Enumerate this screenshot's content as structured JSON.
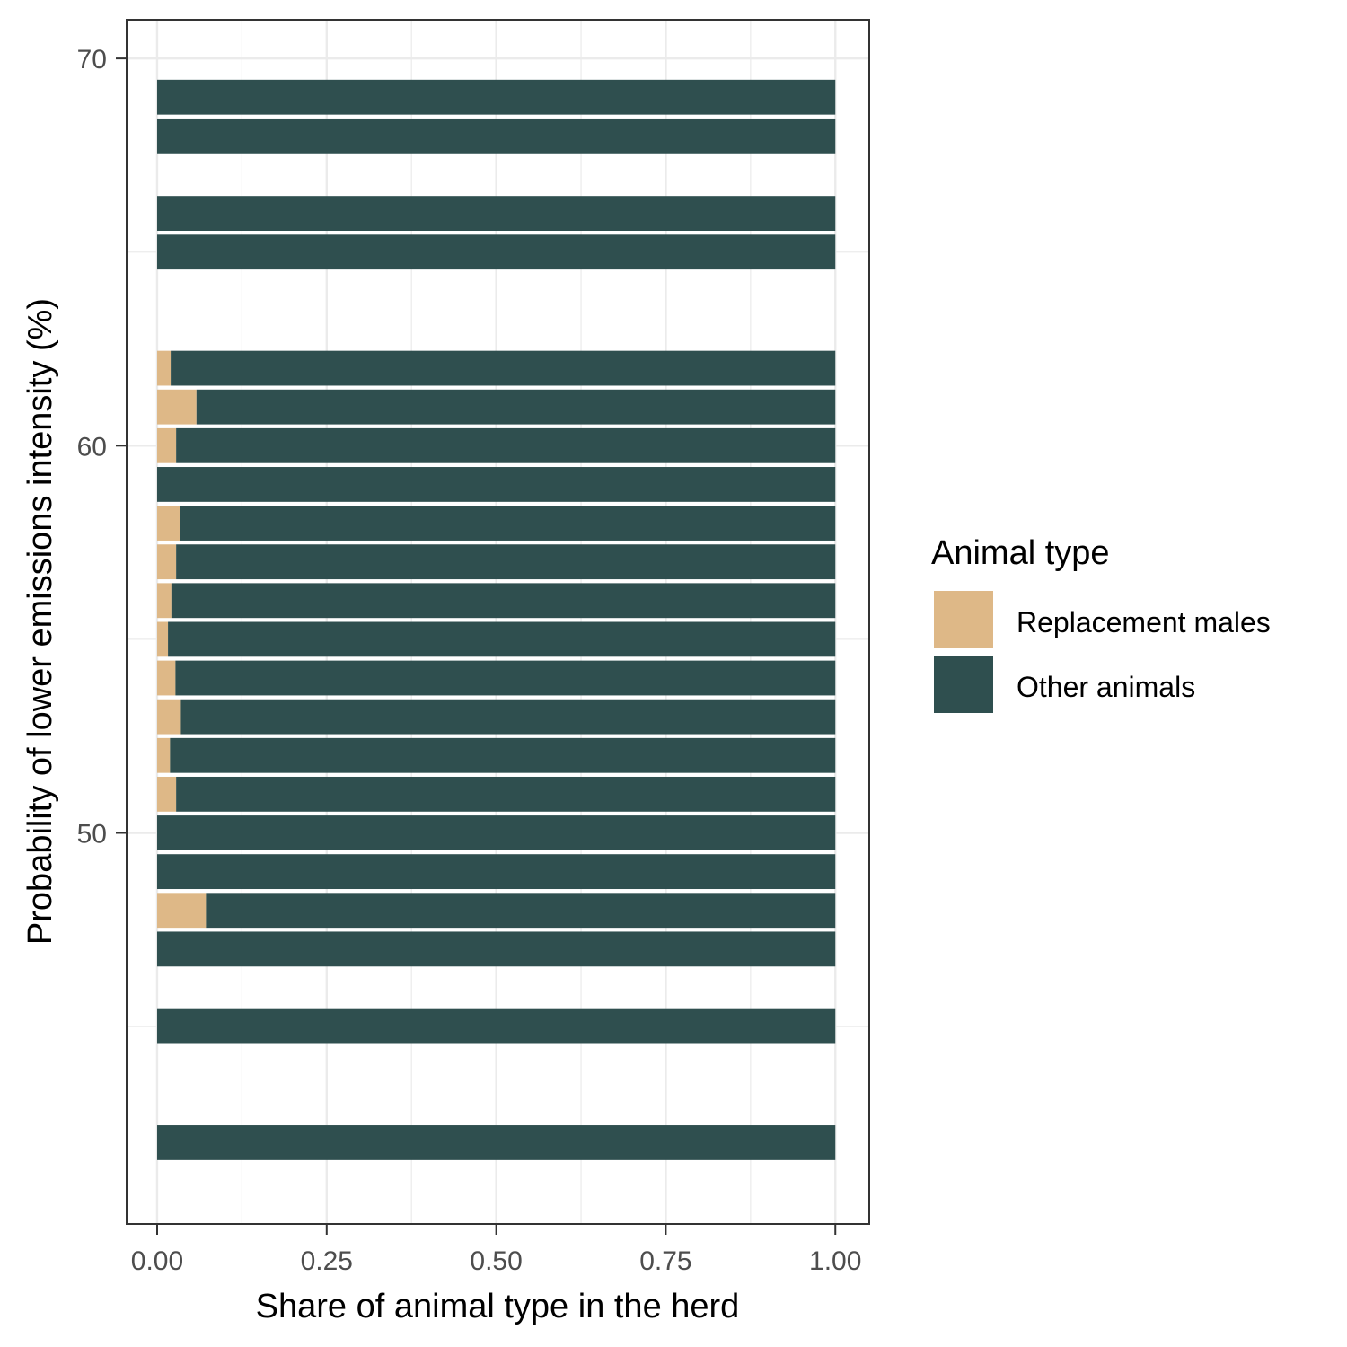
{
  "chart_data": {
    "type": "bar",
    "orientation": "horizontal",
    "stacked": true,
    "xlabel": "Share of animal type in the herd",
    "ylabel": "Probability of lower emissions intensity (%)",
    "xlim": [
      -0.045,
      1.05
    ],
    "ylim": [
      39.9,
      71.0
    ],
    "x_ticks": [
      0,
      0.25,
      0.5,
      0.75,
      1
    ],
    "x_tick_labels": [
      "0.00",
      "0.25",
      "0.50",
      "0.75",
      "1.00"
    ],
    "y_ticks": [
      50,
      60,
      70
    ],
    "y_tick_labels": [
      "50",
      "60",
      "70"
    ],
    "grid": true,
    "bar_height": 0.9,
    "legend": {
      "title": "Animal type",
      "placement": "right"
    },
    "y": [
      42,
      45,
      47,
      48,
      49,
      50,
      51,
      52,
      53,
      54,
      55,
      56,
      57,
      58,
      59,
      60,
      61,
      62,
      65,
      66,
      68,
      69
    ],
    "series": [
      {
        "name": "Replacement males",
        "color": "#DEB887",
        "values": [
          0,
          0,
          0,
          0.072,
          0,
          0,
          0.028,
          0.019,
          0.035,
          0.027,
          0.016,
          0.021,
          0.028,
          0.034,
          0,
          0.028,
          0.058,
          0.02,
          0,
          0,
          0,
          0
        ]
      },
      {
        "name": "Other animals",
        "color": "#2F4F4F",
        "values": [
          1,
          1,
          1,
          0.928,
          1,
          1,
          0.972,
          0.981,
          0.965,
          0.973,
          0.984,
          0.979,
          0.972,
          0.966,
          1,
          0.972,
          0.942,
          0.98,
          1,
          1,
          1,
          1
        ]
      }
    ]
  }
}
